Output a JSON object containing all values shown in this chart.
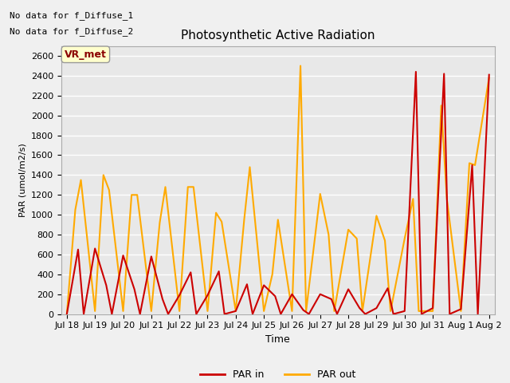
{
  "title": "Photosynthetic Active Radiation",
  "ylabel": "PAR (umol/m2/s)",
  "xlabel": "Time",
  "annotation_line1": "No data for f_Diffuse_1",
  "annotation_line2": "No data for f_Diffuse_2",
  "legend_label_box": "VR_met",
  "background_color": "#e8e8e8",
  "ylim": [
    0,
    2700
  ],
  "yticks": [
    0,
    200,
    400,
    600,
    800,
    1000,
    1200,
    1400,
    1600,
    1800,
    2000,
    2200,
    2400,
    2600
  ],
  "xtick_labels": [
    "Jul 18",
    "Jul 19",
    "Jul 20",
    "Jul 21",
    "Jul 22",
    "Jul 23",
    "Jul 24",
    "Jul 25",
    "Jul 26",
    "Jul 27",
    "Jul 28",
    "Jul 29",
    "Jul 30",
    "Jul 31",
    "Aug 1",
    "Aug 2"
  ],
  "par_in_x": [
    0,
    0.4,
    0.6,
    1.0,
    1.4,
    1.6,
    2.0,
    2.4,
    2.6,
    3.0,
    3.4,
    3.6,
    4.0,
    4.4,
    4.6,
    5.0,
    5.4,
    5.6,
    6.0,
    6.4,
    6.6,
    7.0,
    7.4,
    7.6,
    8.0,
    8.4,
    8.6,
    9.0,
    9.4,
    9.6,
    10.0,
    10.4,
    10.6,
    11.0,
    11.4,
    11.6,
    12.0,
    12.4,
    12.6,
    13.0,
    13.4,
    13.6,
    14.0,
    14.4,
    14.6,
    15.0
  ],
  "par_in_y": [
    0,
    650,
    0,
    660,
    290,
    0,
    590,
    250,
    0,
    580,
    150,
    0,
    190,
    420,
    0,
    190,
    430,
    0,
    30,
    300,
    0,
    290,
    180,
    0,
    200,
    40,
    0,
    200,
    150,
    0,
    250,
    60,
    0,
    60,
    260,
    0,
    30,
    2440,
    0,
    60,
    2420,
    0,
    50,
    1500,
    0,
    2410
  ],
  "par_out_x": [
    0,
    0.3,
    0.5,
    1.0,
    1.3,
    1.5,
    2.0,
    2.3,
    2.5,
    3.0,
    3.3,
    3.5,
    4.0,
    4.3,
    4.5,
    5.0,
    5.3,
    5.5,
    6.0,
    6.3,
    6.5,
    7.0,
    7.3,
    7.5,
    8.0,
    8.3,
    8.5,
    9.0,
    9.3,
    9.5,
    10.0,
    10.3,
    10.5,
    11.0,
    11.3,
    11.5,
    12.0,
    12.3,
    12.5,
    13.0,
    13.3,
    13.5,
    14.0,
    14.3,
    14.5,
    15.0
  ],
  "par_out_y": [
    0,
    1050,
    1350,
    30,
    1400,
    1250,
    30,
    1200,
    1200,
    30,
    920,
    1280,
    30,
    1280,
    1280,
    30,
    1020,
    930,
    30,
    950,
    1480,
    30,
    400,
    950,
    30,
    2500,
    30,
    1210,
    800,
    30,
    850,
    760,
    30,
    990,
    740,
    30,
    760,
    1160,
    30,
    30,
    2100,
    1160,
    30,
    1520,
    1500,
    2380
  ],
  "par_in_color": "#cc0000",
  "par_out_color": "#ffaa00",
  "grid_color": "#ffffff",
  "legend_box_facecolor": "#ffffcc",
  "legend_box_edgecolor": "#999999",
  "fig_facecolor": "#f0f0f0"
}
